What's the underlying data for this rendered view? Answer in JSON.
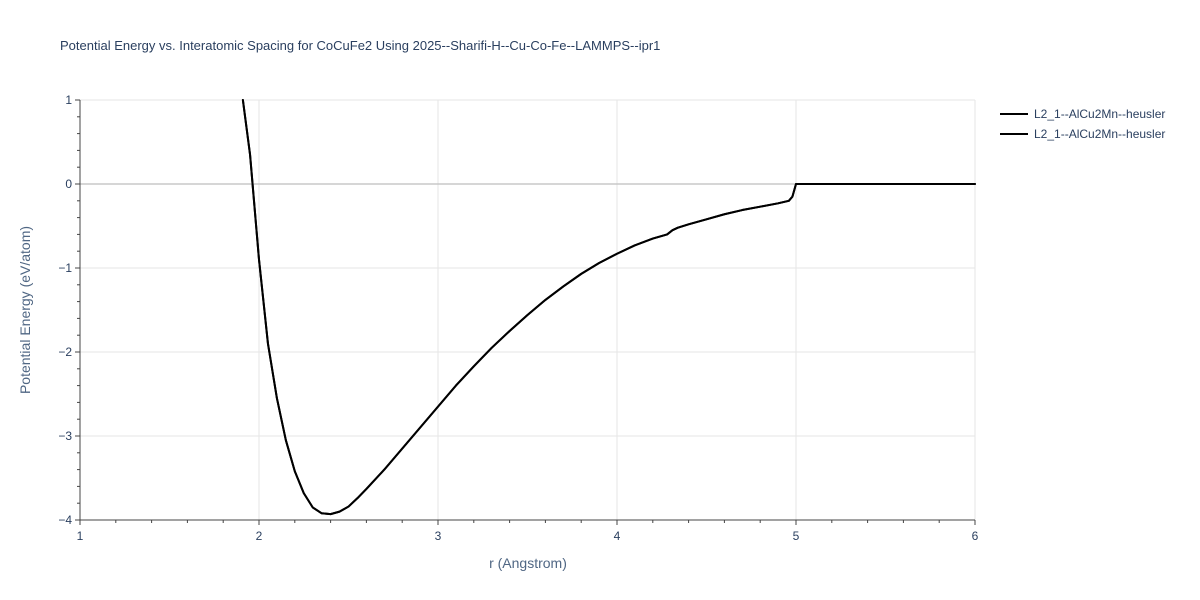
{
  "chart_data": {
    "type": "line",
    "title": "Potential Energy vs. Interatomic Spacing for CoCuFe2 Using 2025--Sharifi-H--Cu-Co-Fe--LAMMPS--ipr1",
    "xlabel": "r (Angstrom)",
    "ylabel": "Potential Energy (eV/atom)",
    "xlim": [
      1,
      6
    ],
    "ylim": [
      -4,
      1
    ],
    "x_ticks": [
      1,
      2,
      3,
      4,
      5,
      6
    ],
    "y_ticks": [
      -4,
      -3,
      -2,
      -1,
      0,
      1
    ],
    "x_tick_labels": [
      "1",
      "2",
      "3",
      "4",
      "5",
      "6"
    ],
    "y_tick_labels": [
      "−4",
      "−3",
      "−2",
      "−1",
      "0",
      "1"
    ],
    "grid": true,
    "legend_position": "top-right",
    "line_color": "#000000",
    "series": [
      {
        "name": "L2_1--AlCu2Mn--heusler",
        "x": [
          1.91,
          1.95,
          2.0,
          2.05,
          2.1,
          2.15,
          2.2,
          2.25,
          2.3,
          2.35,
          2.4,
          2.45,
          2.5,
          2.55,
          2.6,
          2.7,
          2.8,
          2.9,
          3.0,
          3.1,
          3.2,
          3.3,
          3.4,
          3.5,
          3.6,
          3.7,
          3.8,
          3.9,
          4.0,
          4.1,
          4.2,
          4.28,
          4.31,
          4.34,
          4.4,
          4.5,
          4.6,
          4.7,
          4.8,
          4.9,
          4.96,
          4.98,
          5.0,
          5.2,
          5.4,
          5.6,
          5.8,
          6.0
        ],
        "y": [
          1.0,
          0.35,
          -0.9,
          -1.9,
          -2.55,
          -3.05,
          -3.42,
          -3.68,
          -3.85,
          -3.92,
          -3.93,
          -3.9,
          -3.84,
          -3.74,
          -3.63,
          -3.4,
          -3.15,
          -2.9,
          -2.65,
          -2.4,
          -2.17,
          -1.95,
          -1.75,
          -1.56,
          -1.38,
          -1.22,
          -1.07,
          -0.94,
          -0.83,
          -0.73,
          -0.65,
          -0.6,
          -0.55,
          -0.52,
          -0.48,
          -0.42,
          -0.36,
          -0.31,
          -0.27,
          -0.23,
          -0.2,
          -0.15,
          0.0,
          0.0,
          0.0,
          0.0,
          0.0,
          0.0
        ]
      },
      {
        "name": "L2_1--AlCu2Mn--heusler",
        "x": [
          1.91,
          1.95,
          2.0,
          2.05,
          2.1,
          2.15,
          2.2,
          2.25,
          2.3,
          2.35,
          2.4,
          2.45,
          2.5,
          2.55,
          2.6,
          2.7,
          2.8,
          2.9,
          3.0,
          3.1,
          3.2,
          3.3,
          3.4,
          3.5,
          3.6,
          3.7,
          3.8,
          3.9,
          4.0,
          4.1,
          4.2,
          4.28,
          4.31,
          4.34,
          4.4,
          4.5,
          4.6,
          4.7,
          4.8,
          4.9,
          4.96,
          4.98,
          5.0,
          5.2,
          5.4,
          5.6,
          5.8,
          6.0
        ],
        "y": [
          1.0,
          0.35,
          -0.9,
          -1.9,
          -2.55,
          -3.05,
          -3.42,
          -3.68,
          -3.85,
          -3.92,
          -3.93,
          -3.9,
          -3.84,
          -3.74,
          -3.63,
          -3.4,
          -3.15,
          -2.9,
          -2.65,
          -2.4,
          -2.17,
          -1.95,
          -1.75,
          -1.56,
          -1.38,
          -1.22,
          -1.07,
          -0.94,
          -0.83,
          -0.73,
          -0.65,
          -0.6,
          -0.55,
          -0.52,
          -0.48,
          -0.42,
          -0.36,
          -0.31,
          -0.27,
          -0.23,
          -0.2,
          -0.15,
          0.0,
          0.0,
          0.0,
          0.0,
          0.0,
          0.0
        ]
      }
    ]
  }
}
